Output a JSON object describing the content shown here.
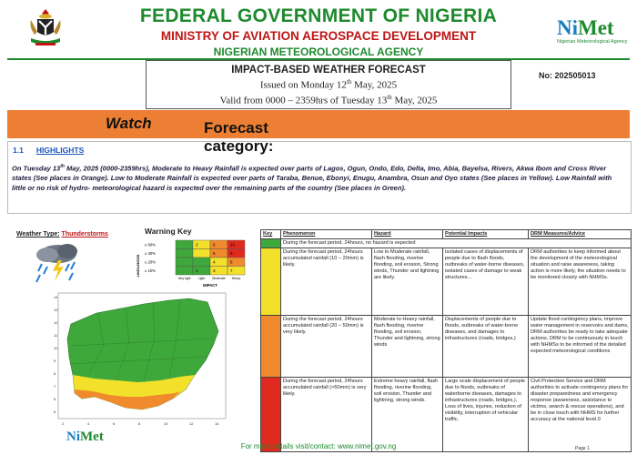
{
  "header": {
    "title": "FEDERAL GOVERNMENT OF NIGERIA",
    "ministry": "MINISTRY OF AVIATION AEROSPACE DEVELOPMENT",
    "agency": "NIGERIAN METEOROLOGICAL AGENCY",
    "logo_ni": "Ni",
    "logo_met": "Met",
    "logo_subtitle": "Nigerian Meteorological Agency"
  },
  "forecast": {
    "title": "IMPACT-BASED WEATHER FORECAST",
    "issued_pre": "Issued on Monday 12",
    "issued_sup": "th",
    "issued_post": " May, 2025",
    "valid_pre": "Valid from 0000 – 2359hrs of Tuesday 13",
    "valid_sup": "th",
    "valid_post": " May, 2025",
    "number": "No: 202505013"
  },
  "category": {
    "label": "Forecast category: ",
    "value": "Watch"
  },
  "highlights": {
    "section": "1.1",
    "title": "HIGHLIGHTS",
    "text_pre": "On Tuesday 13",
    "text_sup": "th",
    "text_post": " May, 2025 (0000-2359hrs), Moderate to Heavy Rainfall is expected over parts of Lagos, Ogun, Ondo, Edo, Delta, Imo, Abia, Bayelsa, Rivers, Akwa Ibom and Cross River states (See places in Orange). Low to Moderate Rainfall is expected over parts of Taraba, Benue, Ebonyi, Enugu, Anambra, Osun and Oyo states (See places in Yellow). Low Rainfall with little or no risk of hydro- meteorological hazard is expected over the remaining parts of the country (See places in Green)."
  },
  "weather_type": {
    "label": "Weather Type:",
    "value": "Thunderstorms"
  },
  "warning_key": {
    "title": "Warning Key",
    "likelihood_label": "LIKELIHOOD",
    "impact_label": "IMPACT",
    "rows": [
      "≥ 60%",
      "≥ 40%",
      "≥ 20%",
      "≥ 10%"
    ],
    "cols": [
      "Very light",
      "Light",
      "Moderate",
      "Heavy"
    ],
    "cells": [
      [
        "",
        "2",
        "6",
        "10"
      ],
      [
        "",
        "",
        "5",
        "9"
      ],
      [
        "",
        "",
        "4",
        "8"
      ],
      [
        "",
        "1",
        "3",
        "7"
      ]
    ],
    "colors": [
      [
        "#3ea83a",
        "#f2e02a",
        "#f08a2c",
        "#e12a1f"
      ],
      [
        "#3ea83a",
        "#f2e02a",
        "#f08a2c",
        "#e12a1f"
      ],
      [
        "#3ea83a",
        "#3ea83a",
        "#f2e02a",
        "#f08a2c"
      ],
      [
        "#3ea83a",
        "#3ea83a",
        "#f2e02a",
        "#f2e02a"
      ]
    ]
  },
  "map": {
    "y_ticks": [
      "14",
      "13",
      "12",
      "11",
      "10",
      "9",
      "8",
      "7",
      "6",
      "5"
    ],
    "x_ticks": [
      "2",
      "4",
      "6",
      "8",
      "10",
      "12",
      "14"
    ],
    "brand_ni": "Ni",
    "brand_met": "Met"
  },
  "table": {
    "headers": [
      "Key",
      "Phenomenon",
      "Hazard",
      "Potential Impacts",
      "DRM Measures/Advice"
    ],
    "no_hazard": "During the forecast period, 24hours, no hazard is expected",
    "rows": [
      {
        "color": "#f2e02a",
        "phenomenon": "During the forecast period, 24hours accumulated rainfall (10 – 20mm) is likely.",
        "hazard": "Low to Moderate rainfall, flash flooding, riverine flooding, soil erosion, Strong winds, Thunder and lightning are likely.",
        "impacts": "Isolated cases of displacements of people due to flash floods, outbreaks of water-borne diseases, isolated cases of damage to weak structures…",
        "drm": "DRM authorities to keep informed about the development of the meteorological situation and raise awareness, taking action is more likely, the situation needs to be monitored closely with NHMSs."
      },
      {
        "color": "#f08a2c",
        "phenomenon": "During the forecast period, 24hours accumulated rainfall (20 – 50mm) is very likely.",
        "hazard": "Moderate to Heavy rainfall, flash flooding, riverine flooding, soil erosion, Thunder and lightning, strong winds",
        "impacts": "Displacements of people due to floods, outbreaks of water-borne diseases, and damages to infrastructures (roads, bridges,)",
        "drm": "Update flood contingency plans, improve water management in reservoirs and dams, DRM authorities be ready to take adequate actions, DRM to be continuously in touch with NHMSs to be informed of the detailed expected meteorological conditions"
      },
      {
        "color": "#e12a1f",
        "phenomenon": "During the forecast period, 24hours accumulated rainfall (>50mm) is very likely.",
        "hazard": "Extreme heavy rainfall, flash flooding, riverine flooding, soil erosion, Thunder and lightning, strong winds.",
        "impacts": "Large scale displacement of people due to floods, outbreaks of waterborne diseases, damages to infrastructures (roads, bridges,), Loss of lives, injuries, reduction of visibility, interruption of vehicular traffic.",
        "drm": "Civil Protection Service and DRM authorities to activate contingency plans for disaster preparedness and emergency response (awareness, assistance to victims, search & rescue operations), and be in close touch with NHMS for further accuracy at the national level.0"
      }
    ]
  },
  "footer": {
    "text": "For more details visit/contact: www.nimet.gov.ng",
    "page": "Page 1"
  },
  "colors": {
    "green": "#1e8a2e",
    "red": "#c01515",
    "orange_band": "#ec7f33",
    "blue": "#1a55b8"
  }
}
